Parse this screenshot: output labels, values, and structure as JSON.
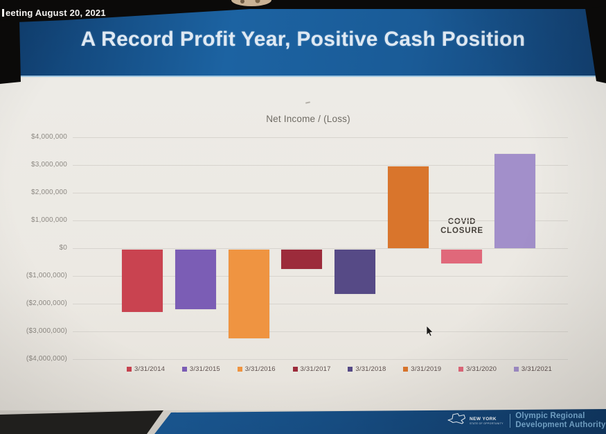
{
  "photo": {
    "meeting_overlay": "eeting August 20, 2021"
  },
  "header": {
    "title": "A Record Profit Year, Positive Cash Position"
  },
  "chart_data": {
    "type": "bar",
    "title": "Net Income / (Loss)",
    "categories": [
      "3/31/2014",
      "3/31/2015",
      "3/31/2016",
      "3/31/2017",
      "3/31/2018",
      "3/31/2019",
      "3/31/2020",
      "3/31/2021"
    ],
    "values": [
      -2250000,
      -2150000,
      -3200000,
      -700000,
      -1600000,
      2950000,
      -500000,
      3400000
    ],
    "bar_colors": [
      "#c94350",
      "#7b5db5",
      "#ef9441",
      "#9c2b3b",
      "#564a86",
      "#d9752c",
      "#e0687a",
      "#a28fca"
    ],
    "ylim": [
      -4000000,
      4000000
    ],
    "ytick_labels": [
      "$4,000,000",
      "$3,000,000",
      "$2,000,000",
      "$1,000,000",
      "$0",
      "($1,000,000)",
      "($2,000,000)",
      "($3,000,000)",
      "($4,000,000)"
    ],
    "grid": true,
    "legend_position": "bottom",
    "annotations": [
      {
        "lines": [
          "COVID",
          "CLOSURE"
        ],
        "target_category": "3/31/2020"
      }
    ]
  },
  "footer": {
    "logo_text_primary": "NEW YORK",
    "logo_text_secondary": "STATE OF OPPORTUNITY",
    "org_name_line1": "Olympic Regional",
    "org_name_line2": "Development Authority"
  },
  "colors": {
    "header_blue": "#1c63a2",
    "footer_blue": "#174f86",
    "slide_background": "#ecE9e3",
    "accent_light_blue": "#9fc6e1"
  }
}
